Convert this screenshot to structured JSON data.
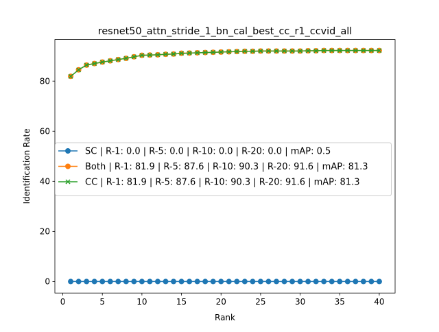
{
  "chart_data": {
    "type": "line",
    "title": "resnet50_attn_stride_1_bn_cal_best_cc_r1_ccvid_all",
    "xlabel": "Rank",
    "ylabel": "Identification Rate",
    "xlim": [
      -1,
      42
    ],
    "ylim": [
      -4.6,
      96.6
    ],
    "xticks": [
      0,
      5,
      10,
      15,
      20,
      25,
      30,
      35,
      40
    ],
    "yticks": [
      0,
      20,
      40,
      60,
      80
    ],
    "grid": false,
    "legend_position": "center-left",
    "x": [
      1,
      2,
      3,
      4,
      5,
      6,
      7,
      8,
      9,
      10,
      11,
      12,
      13,
      14,
      15,
      16,
      17,
      18,
      19,
      20,
      21,
      22,
      23,
      24,
      25,
      26,
      27,
      28,
      29,
      30,
      31,
      32,
      33,
      34,
      35,
      36,
      37,
      38,
      39,
      40
    ],
    "series": [
      {
        "name": "SC | R-1: 0.0 | R-5: 0.0 | R-10: 0.0 | R-20: 0.0 | mAP: 0.5",
        "color": "#1f77b4",
        "marker": "circle",
        "values": [
          0,
          0,
          0,
          0,
          0,
          0,
          0,
          0,
          0,
          0,
          0,
          0,
          0,
          0,
          0,
          0,
          0,
          0,
          0,
          0,
          0,
          0,
          0,
          0,
          0,
          0,
          0,
          0,
          0,
          0,
          0,
          0,
          0,
          0,
          0,
          0,
          0,
          0,
          0,
          0
        ]
      },
      {
        "name": "Both | R-1: 81.9 | R-5: 87.6 | R-10: 90.3 | R-20: 91.6 | mAP: 81.3",
        "color": "#ff7f0e",
        "marker": "circle",
        "values": [
          81.9,
          84.5,
          86.4,
          87.0,
          87.6,
          88.1,
          88.6,
          89.1,
          89.7,
          90.3,
          90.4,
          90.5,
          90.7,
          90.8,
          91.1,
          91.2,
          91.3,
          91.4,
          91.5,
          91.6,
          91.7,
          91.8,
          91.9,
          91.9,
          92.0,
          92.0,
          92.0,
          92.0,
          92.0,
          92.0,
          92.1,
          92.1,
          92.2,
          92.2,
          92.2,
          92.2,
          92.2,
          92.2,
          92.2,
          92.2
        ]
      },
      {
        "name": "CC | R-1: 81.9 | R-5: 87.6 | R-10: 90.3 | R-20: 91.6 | mAP: 81.3",
        "color": "#2ca02c",
        "marker": "x",
        "values": [
          81.9,
          84.5,
          86.4,
          87.0,
          87.6,
          88.1,
          88.6,
          89.1,
          89.7,
          90.3,
          90.4,
          90.5,
          90.7,
          90.8,
          91.1,
          91.2,
          91.3,
          91.4,
          91.5,
          91.6,
          91.7,
          91.8,
          91.9,
          91.9,
          92.0,
          92.0,
          92.0,
          92.0,
          92.0,
          92.0,
          92.1,
          92.1,
          92.2,
          92.2,
          92.2,
          92.2,
          92.2,
          92.2,
          92.2,
          92.2
        ]
      }
    ]
  }
}
